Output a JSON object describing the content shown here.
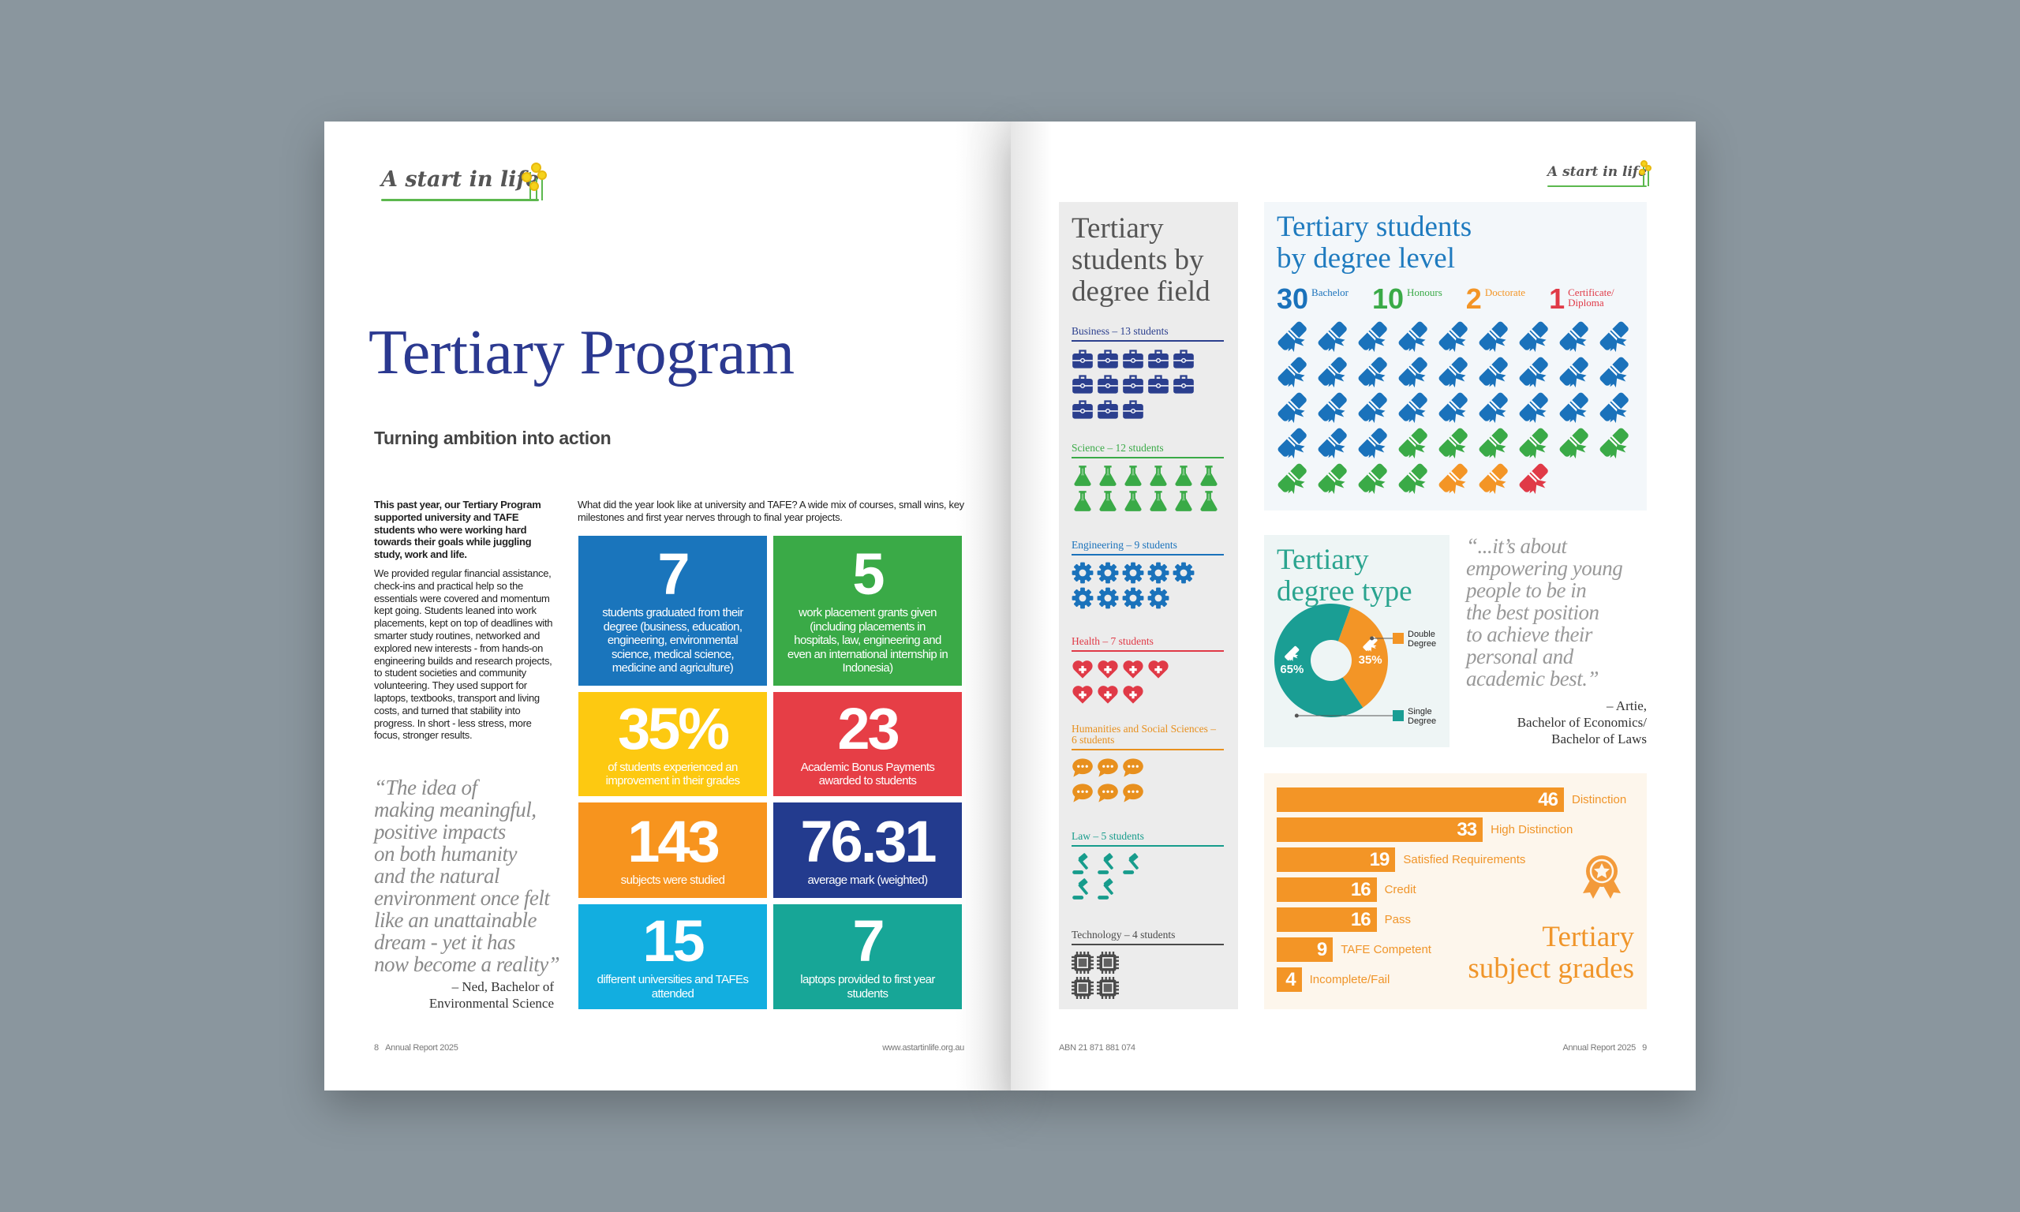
{
  "left_page": {
    "logo_text": "A start in life",
    "title": "Tertiary Program",
    "subtitle": "Turning ambition into action",
    "intro_bold": "This past year, our Tertiary Program supported university and TAFE students who were working hard towards their goals while juggling study, work and life.",
    "body": "We provided regular financial assistance, check-ins and practical help so the essentials were covered and momentum kept going. Students leaned into work placements, kept on top of deadlines with smarter study routines, networked and explored new interests - from hands-on engineering builds and research projects, to student societies and community volunteering. They used support for laptops, textbooks, transport and living costs, and turned that stability into progress. In short - less stress, more focus, stronger results.",
    "stats_intro": "What did the year look like at university and TAFE? A wide mix of courses, small wins, key milestones and first year nerves through to final year projects.",
    "stats": [
      {
        "value": "7",
        "label": "students graduated from their degree (business, education, engineering, environmental science, medical science, medicine and agriculture)",
        "color": "#1a75bc"
      },
      {
        "value": "5",
        "label": "work placement grants given (including placements in hospitals, law, engineering and even an international internship in Indonesia)",
        "color": "#3aaa47"
      },
      {
        "value": "35%",
        "label": "of students experienced an improvement in their grades",
        "color": "#fdc911"
      },
      {
        "value": "23",
        "label": "Academic Bonus Payments awarded to students",
        "color": "#e63e46"
      },
      {
        "value": "143",
        "label": "subjects were studied",
        "color": "#f7941e"
      },
      {
        "value": "76.31",
        "label": "average mark (weighted)",
        "color": "#233b8e"
      },
      {
        "value": "15",
        "label": "different universities and TAFEs attended",
        "color": "#12aee0"
      },
      {
        "value": "7",
        "label": "laptops provided to first year students",
        "color": "#17a697"
      }
    ],
    "quote": {
      "text": "“The idea of\nmaking meaningful,\npositive impacts\non both humanity\nand the natural\nenvironment once felt\nlike an unattainable\ndream - yet it has\nnow become a reality”",
      "attribution": "– Ned, Bachelor of\nEnvironmental Science"
    },
    "footer": {
      "page_number": "8",
      "report": "Annual Report 2025",
      "url": "www.astartinlife.org.au"
    }
  },
  "right_page": {
    "logo_text": "A start in life",
    "degree_field": {
      "title": "Tertiary\nstudents by\ndegree field",
      "fields": [
        {
          "label": "Business – 13 students",
          "count": 13,
          "color": "#2b3f8e",
          "icon": "briefcase"
        },
        {
          "label": "Science – 12 students",
          "count": 12,
          "color": "#3aaa47",
          "icon": "flask"
        },
        {
          "label": "Engineering – 9 students",
          "count": 9,
          "color": "#1a72bb",
          "icon": "gear"
        },
        {
          "label": "Health – 7 students",
          "count": 7,
          "color": "#e03a47",
          "icon": "heart"
        },
        {
          "label": "Humanities and Social Sciences – 6 students",
          "count": 6,
          "color": "#e8901e",
          "icon": "bubble"
        },
        {
          "label": "Law – 5 students",
          "count": 5,
          "color": "#179c8c",
          "icon": "gavel"
        },
        {
          "label": "Technology – 4 students",
          "count": 4,
          "color": "#4a4a4a",
          "icon": "chip"
        }
      ]
    },
    "degree_level": {
      "title": "Tertiary students\nby degree level",
      "levels": [
        {
          "count": 30,
          "label": "Bachelor",
          "color": "#1a72bb"
        },
        {
          "count": 10,
          "label": "Honours",
          "color": "#3aaa47"
        },
        {
          "count": 2,
          "label": "Doctorate",
          "color": "#f39526"
        },
        {
          "count": 1,
          "label": "Certificate/\nDiploma",
          "color": "#e03a47"
        }
      ]
    },
    "degree_type": {
      "title": "Tertiary\ndegree type",
      "segments": [
        {
          "label": "Double Degree",
          "percent": 35,
          "display": "35%",
          "color": "#f39526"
        },
        {
          "label": "Single Degree",
          "percent": 65,
          "display": "65%",
          "color": "#1a9e94"
        }
      ]
    },
    "quote": {
      "text": "“...it’s about\nempowering young\npeople to be in\nthe best position\nto achieve their\npersonal and\nacademic best.”",
      "attribution": "– Artie,\nBachelor of Economics/\nBachelor of Laws"
    },
    "grades": {
      "title": "Tertiary\nsubject grades",
      "bars": [
        {
          "value": 46,
          "label": "Distinction"
        },
        {
          "value": 33,
          "label": "High Distinction"
        },
        {
          "value": 19,
          "label": "Satisfied Requirements"
        },
        {
          "value": 16,
          "label": "Credit"
        },
        {
          "value": 16,
          "label": "Pass"
        },
        {
          "value": 9,
          "label": "TAFE Competent"
        },
        {
          "value": 4,
          "label": "Incomplete/Fail"
        }
      ]
    },
    "footer": {
      "abn": "ABN 21 871 881 074",
      "report": "Annual Report 2025",
      "page_number": "9"
    }
  }
}
